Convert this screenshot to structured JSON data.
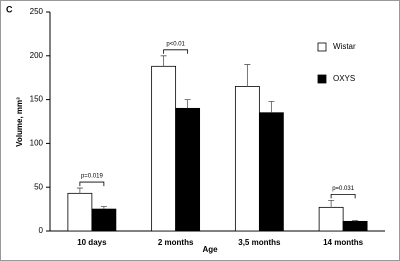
{
  "chart_data": {
    "type": "bar",
    "panel_label": "C",
    "xlabel": "Age",
    "ylabel": "Volume, mm³",
    "categories": [
      "10 days",
      "2 months",
      "3,5 months",
      "14 months"
    ],
    "series": [
      {
        "name": "Wistar",
        "color": "#ffffff",
        "values": [
          43,
          188,
          165,
          27
        ],
        "errors": [
          6,
          12,
          25,
          8
        ]
      },
      {
        "name": "OXYS",
        "color": "#000000",
        "values": [
          25,
          140,
          135,
          11
        ],
        "errors": [
          3,
          10,
          13,
          1
        ]
      }
    ],
    "ylim": [
      0,
      250
    ],
    "yticks": [
      0,
      50,
      100,
      150,
      200,
      250
    ],
    "annotations": [
      "p=0.019",
      "p<0.01",
      "p=0.031"
    ],
    "legend": "right"
  }
}
